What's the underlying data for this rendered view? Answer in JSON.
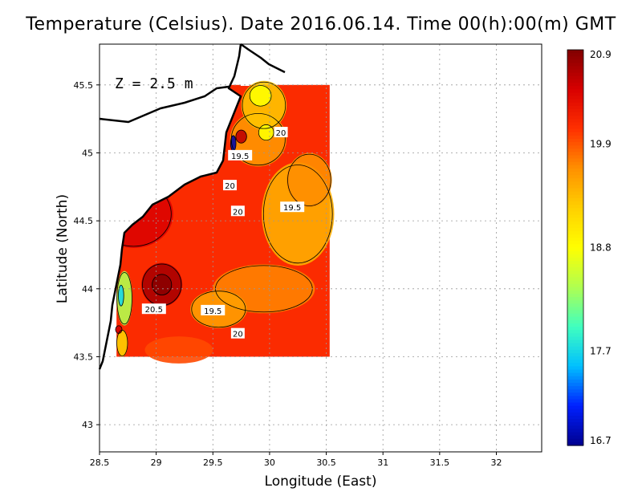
{
  "chart_data": {
    "type": "heatmap",
    "title": "Temperature (Celsius). Date 2016.06.14. Time 00(h):00(m)  GMT",
    "xlabel": "Longitude (East)",
    "ylabel": "Latitude (North)",
    "annotation": "Z = 2.5 m",
    "xlim": [
      28.5,
      32.4
    ],
    "ylim": [
      42.8,
      45.8
    ],
    "xticks": [
      28.5,
      29,
      29.5,
      30,
      30.5,
      31,
      31.5,
      32
    ],
    "xtick_labels": [
      "28.5",
      "29",
      "29.5",
      "30",
      "30.5",
      "31",
      "31.5",
      "32"
    ],
    "yticks": [
      43,
      43.5,
      44,
      44.5,
      45,
      45.5
    ],
    "ytick_labels": [
      "43",
      "43.5",
      "44",
      "44.5",
      "45",
      "45.5"
    ],
    "grid": true,
    "data_extent": {
      "lon": [
        28.65,
        30.53
      ],
      "lat": [
        43.5,
        45.5
      ]
    },
    "colorbar": {
      "min": 16.7,
      "max": 20.9,
      "ticks": [
        20.9,
        19.9,
        18.8,
        17.7,
        16.7
      ],
      "tick_labels": [
        "20.9",
        "19.9",
        "18.8",
        "17.7",
        "16.7"
      ],
      "colors": [
        "#00008f",
        "#0020ff",
        "#00c0ff",
        "#40ffbf",
        "#b0ff50",
        "#ffff00",
        "#ffd000",
        "#ff9000",
        "#ff3000",
        "#d80000",
        "#800000"
      ]
    },
    "background_value": 20.1,
    "features": [
      {
        "lon": 29.05,
        "lat": 44.03,
        "value": 20.7,
        "rx": 0.18,
        "ry": 0.16
      },
      {
        "lon": 29.05,
        "lat": 44.03,
        "value": 20.85,
        "rx": 0.09,
        "ry": 0.08
      },
      {
        "lon": 28.8,
        "lat": 44.55,
        "value": 20.45,
        "rx": 0.35,
        "ry": 0.25
      },
      {
        "lon": 29.95,
        "lat": 44.0,
        "value": 19.7,
        "rx": 0.45,
        "ry": 0.18
      },
      {
        "lon": 29.55,
        "lat": 43.85,
        "value": 19.55,
        "rx": 0.25,
        "ry": 0.14
      },
      {
        "lon": 30.25,
        "lat": 44.55,
        "value": 19.45,
        "rx": 0.32,
        "ry": 0.38
      },
      {
        "lon": 30.35,
        "lat": 44.8,
        "value": 19.65,
        "rx": 0.2,
        "ry": 0.2
      },
      {
        "lon": 29.9,
        "lat": 45.1,
        "value": 19.6,
        "rx": 0.25,
        "ry": 0.2
      },
      {
        "lon": 29.95,
        "lat": 45.35,
        "value": 19.3,
        "rx": 0.2,
        "ry": 0.18
      },
      {
        "lon": 29.92,
        "lat": 45.42,
        "value": 18.8,
        "rx": 0.1,
        "ry": 0.08
      },
      {
        "lon": 29.97,
        "lat": 45.15,
        "value": 18.8,
        "rx": 0.07,
        "ry": 0.06
      },
      {
        "lon": 29.75,
        "lat": 45.12,
        "value": 20.6,
        "rx": 0.05,
        "ry": 0.05
      },
      {
        "lon": 29.68,
        "lat": 45.07,
        "value": 16.8,
        "rx": 0.025,
        "ry": 0.06
      },
      {
        "lon": 28.72,
        "lat": 43.93,
        "value": 18.4,
        "rx": 0.07,
        "ry": 0.2
      },
      {
        "lon": 28.69,
        "lat": 43.95,
        "value": 17.7,
        "rx": 0.025,
        "ry": 0.08
      },
      {
        "lon": 28.7,
        "lat": 43.6,
        "value": 19.2,
        "rx": 0.05,
        "ry": 0.1
      },
      {
        "lon": 28.67,
        "lat": 43.7,
        "value": 20.5,
        "rx": 0.03,
        "ry": 0.03
      },
      {
        "lon": 29.2,
        "lat": 43.55,
        "value": 19.95,
        "rx": 0.3,
        "ry": 0.1
      }
    ],
    "contour_labels": [
      {
        "text": "20",
        "lon": 30.1,
        "lat": 45.15
      },
      {
        "text": "19.5",
        "lon": 29.74,
        "lat": 44.98
      },
      {
        "text": "20",
        "lon": 29.65,
        "lat": 44.76
      },
      {
        "text": "20",
        "lon": 29.72,
        "lat": 44.57
      },
      {
        "text": "19.5",
        "lon": 30.2,
        "lat": 44.6
      },
      {
        "text": "20.5",
        "lon": 28.98,
        "lat": 43.85
      },
      {
        "text": "19.5",
        "lon": 29.5,
        "lat": 43.84
      },
      {
        "text": "20",
        "lon": 29.72,
        "lat": 43.67
      }
    ]
  }
}
